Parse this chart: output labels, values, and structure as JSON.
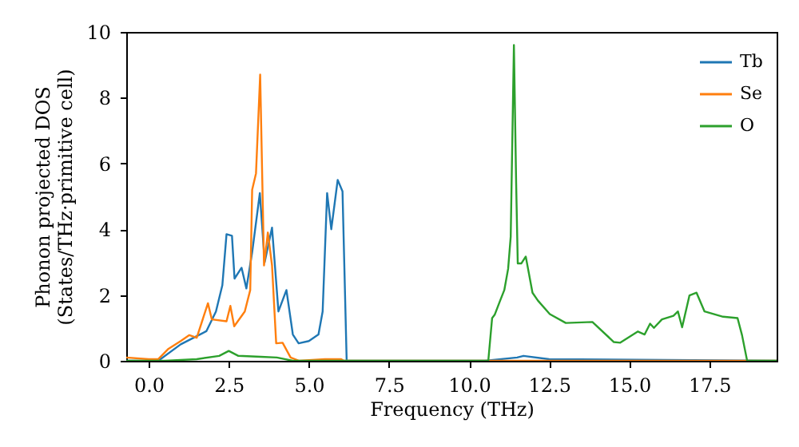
{
  "chart_data": {
    "type": "line",
    "xlabel": "Frequency (THz)",
    "ylabel": "Phonon projected DOS\n(States/THz·primitive cell)",
    "xlim": [
      -0.7,
      19.6
    ],
    "ylim": [
      0,
      10
    ],
    "xticks": [
      {
        "value": 0,
        "label": "0.0"
      },
      2.5,
      {
        "value": 5,
        "label": "5.0"
      },
      7.5,
      {
        "value": 10,
        "label": "10.0"
      },
      12.5,
      {
        "value": 15,
        "label": "15.0"
      },
      17.5
    ],
    "yticks": [
      0,
      2,
      4,
      6,
      8,
      10
    ],
    "legend": "top right",
    "grid": false,
    "line_style": "solid",
    "series": [
      {
        "name": "Tb",
        "color": "#1f77b4",
        "x": [
          -0.7,
          0.3,
          1.0,
          1.5,
          1.8,
          2.1,
          2.3,
          2.43,
          2.6,
          2.68,
          2.9,
          3.05,
          3.23,
          3.47,
          3.62,
          3.85,
          4.05,
          4.3,
          4.5,
          4.68,
          5.0,
          5.3,
          5.43,
          5.57,
          5.7,
          5.9,
          6.05,
          6.18,
          10.5,
          11.5,
          11.7,
          12.5,
          19.6
        ],
        "values": [
          0,
          0,
          0.5,
          0.75,
          0.9,
          1.5,
          2.3,
          3.85,
          3.8,
          2.5,
          2.83,
          2.2,
          3.3,
          5.1,
          3.0,
          4.05,
          1.5,
          2.15,
          0.8,
          0.53,
          0.6,
          0.8,
          1.5,
          5.1,
          4.0,
          5.5,
          5.15,
          0,
          0,
          0.1,
          0.15,
          0.05,
          0
        ]
      },
      {
        "name": "Se",
        "color": "#ff7f0e",
        "x": [
          -0.7,
          0.0,
          0.3,
          0.6,
          1.0,
          1.27,
          1.5,
          1.85,
          1.97,
          2.43,
          2.55,
          2.67,
          3.0,
          3.17,
          3.23,
          3.35,
          3.48,
          3.6,
          3.72,
          3.85,
          3.98,
          4.18,
          4.43,
          4.7,
          5.5,
          6.0,
          6.1,
          19.6
        ],
        "values": [
          0.1,
          0.05,
          0.05,
          0.35,
          0.6,
          0.78,
          0.7,
          1.75,
          1.26,
          1.2,
          1.67,
          1.05,
          1.5,
          2.15,
          5.2,
          5.7,
          8.7,
          2.9,
          3.9,
          2.9,
          0.53,
          0.55,
          0.1,
          0,
          0.05,
          0.05,
          0,
          0
        ]
      },
      {
        "name": "O",
        "color": "#2ca02c",
        "x": [
          -0.7,
          0.5,
          1.5,
          2.2,
          2.5,
          2.8,
          3.5,
          4.0,
          4.5,
          10.6,
          10.72,
          10.8,
          10.97,
          11.1,
          11.22,
          11.3,
          11.4,
          11.47,
          11.52,
          11.63,
          11.77,
          11.98,
          12.15,
          12.52,
          13.02,
          13.85,
          14.52,
          14.72,
          15.27,
          15.48,
          15.65,
          15.77,
          16.02,
          16.38,
          16.52,
          16.65,
          16.88,
          17.1,
          17.35,
          17.93,
          18.38,
          18.52,
          18.68,
          19.6
        ],
        "values": [
          0,
          0,
          0.05,
          0.15,
          0.3,
          0.15,
          0.12,
          0.1,
          0,
          0,
          1.3,
          1.4,
          1.83,
          2.15,
          2.8,
          3.77,
          9.6,
          5.4,
          2.96,
          2.96,
          3.17,
          2.07,
          1.83,
          1.42,
          1.15,
          1.18,
          0.57,
          0.55,
          0.89,
          0.8,
          1.13,
          1.0,
          1.26,
          1.37,
          1.5,
          1.02,
          1.99,
          2.07,
          1.5,
          1.34,
          1.3,
          0.78,
          0,
          0
        ]
      }
    ]
  }
}
